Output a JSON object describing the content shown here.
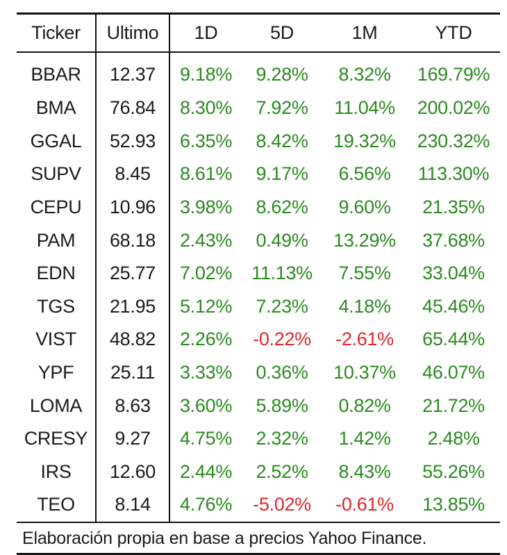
{
  "table": {
    "headers": [
      "Ticker",
      "Ultimo",
      "1D",
      "5D",
      "1M",
      "YTD"
    ],
    "rows": [
      {
        "ticker": "BBAR",
        "last": "12.37",
        "d1": "9.18%",
        "d5": "9.28%",
        "m1": "8.32%",
        "ytd": "169.79%"
      },
      {
        "ticker": "BMA",
        "last": "76.84",
        "d1": "8.30%",
        "d5": "7.92%",
        "m1": "11.04%",
        "ytd": "200.02%"
      },
      {
        "ticker": "GGAL",
        "last": "52.93",
        "d1": "6.35%",
        "d5": "8.42%",
        "m1": "19.32%",
        "ytd": "230.32%"
      },
      {
        "ticker": "SUPV",
        "last": "8.45",
        "d1": "8.61%",
        "d5": "9.17%",
        "m1": "6.56%",
        "ytd": "113.30%"
      },
      {
        "ticker": "CEPU",
        "last": "10.96",
        "d1": "3.98%",
        "d5": "8.62%",
        "m1": "9.60%",
        "ytd": "21.35%"
      },
      {
        "ticker": "PAM",
        "last": "68.18",
        "d1": "2.43%",
        "d5": "0.49%",
        "m1": "13.29%",
        "ytd": "37.68%"
      },
      {
        "ticker": "EDN",
        "last": "25.77",
        "d1": "7.02%",
        "d5": "11.13%",
        "m1": "7.55%",
        "ytd": "33.04%"
      },
      {
        "ticker": "TGS",
        "last": "21.95",
        "d1": "5.12%",
        "d5": "7.23%",
        "m1": "4.18%",
        "ytd": "45.46%"
      },
      {
        "ticker": "VIST",
        "last": "48.82",
        "d1": "2.26%",
        "d5": "-0.22%",
        "m1": "-2.61%",
        "ytd": "65.44%"
      },
      {
        "ticker": "YPF",
        "last": "25.11",
        "d1": "3.33%",
        "d5": "0.36%",
        "m1": "10.37%",
        "ytd": "46.07%"
      },
      {
        "ticker": "LOMA",
        "last": "8.63",
        "d1": "3.60%",
        "d5": "5.89%",
        "m1": "0.82%",
        "ytd": "21.72%"
      },
      {
        "ticker": "CRESY",
        "last": "9.27",
        "d1": "4.75%",
        "d5": "2.32%",
        "m1": "1.42%",
        "ytd": "2.48%"
      },
      {
        "ticker": "IRS",
        "last": "12.60",
        "d1": "2.44%",
        "d5": "2.52%",
        "m1": "8.43%",
        "ytd": "55.26%"
      },
      {
        "ticker": "TEO",
        "last": "8.14",
        "d1": "4.76%",
        "d5": "-5.02%",
        "m1": "-0.61%",
        "ytd": "13.85%"
      }
    ]
  },
  "source_note": "Elaboración propia en base a precios Yahoo Finance.",
  "colors": {
    "positive": "#2a8a1f",
    "negative": "#e0262e",
    "text": "#1a1a1a",
    "rules": "#111111"
  }
}
